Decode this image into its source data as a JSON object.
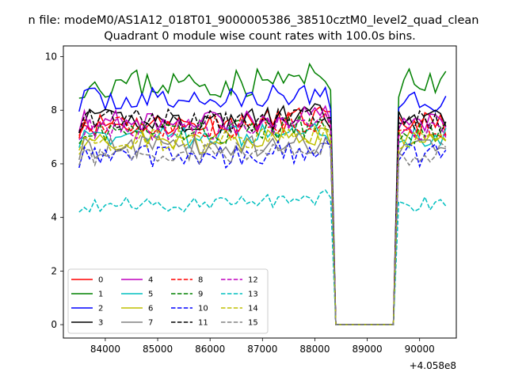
{
  "figure": {
    "suptitle": "n file: modeM0/AS1A12_018T01_9000005386_38510cztM0_level2_quad_clean",
    "title": "Quadrant 0 module wise count rates with 100.0s bins.",
    "x_offset_label": "+4.058e8"
  },
  "chart_data": {
    "type": "line",
    "title": "Quadrant 0 module wise count rates with 100.0s bins.",
    "xlabel": "",
    "ylabel": "",
    "x_offset": "+4.058e8",
    "xlim": [
      83200,
      90700
    ],
    "ylim": [
      -0.5,
      10.4
    ],
    "xticks": [
      84000,
      85000,
      86000,
      87000,
      88000,
      89000,
      90000
    ],
    "yticks": [
      0,
      2,
      4,
      6,
      8,
      10
    ],
    "grid": false,
    "legend": {
      "placement": "lower-left",
      "columns": 4
    },
    "series": [
      {
        "name": "0",
        "color": "#ff0000",
        "style": "solid",
        "start": 83500,
        "step": 100,
        "n": 71,
        "base": 7.5,
        "amp": 0.45,
        "seed": 11
      },
      {
        "name": "1",
        "color": "#008000",
        "style": "solid",
        "start": 83500,
        "step": 100,
        "n": 71,
        "base": 9.0,
        "amp": 0.55,
        "seed": 23
      },
      {
        "name": "2",
        "color": "#0000ff",
        "style": "solid",
        "start": 83500,
        "step": 100,
        "n": 71,
        "base": 8.4,
        "amp": 0.45,
        "seed": 37
      },
      {
        "name": "3",
        "color": "#000000",
        "style": "solid",
        "start": 83500,
        "step": 100,
        "n": 71,
        "base": 7.6,
        "amp": 0.45,
        "seed": 41
      },
      {
        "name": "4",
        "color": "#bf00bf",
        "style": "solid",
        "start": 83500,
        "step": 100,
        "n": 71,
        "base": 7.6,
        "amp": 0.4,
        "seed": 53
      },
      {
        "name": "5",
        "color": "#00bfbf",
        "style": "solid",
        "start": 83500,
        "step": 100,
        "n": 71,
        "base": 7.0,
        "amp": 0.4,
        "seed": 67
      },
      {
        "name": "6",
        "color": "#bfbf00",
        "style": "solid",
        "start": 83500,
        "step": 100,
        "n": 71,
        "base": 6.8,
        "amp": 0.45,
        "seed": 71
      },
      {
        "name": "7",
        "color": "#808080",
        "style": "solid",
        "start": 83500,
        "step": 100,
        "n": 71,
        "base": 6.6,
        "amp": 0.45,
        "seed": 83
      },
      {
        "name": "8",
        "color": "#ff0000",
        "style": "dashed",
        "start": 83500,
        "step": 100,
        "n": 71,
        "base": 7.4,
        "amp": 0.45,
        "seed": 97
      },
      {
        "name": "9",
        "color": "#008000",
        "style": "dashed",
        "start": 83500,
        "step": 100,
        "n": 71,
        "base": 7.2,
        "amp": 0.45,
        "seed": 101
      },
      {
        "name": "10",
        "color": "#0000ff",
        "style": "dashed",
        "start": 83500,
        "step": 100,
        "n": 71,
        "base": 6.3,
        "amp": 0.45,
        "seed": 113
      },
      {
        "name": "11",
        "color": "#000000",
        "style": "dashed",
        "start": 83500,
        "step": 100,
        "n": 71,
        "base": 7.6,
        "amp": 0.45,
        "seed": 127
      },
      {
        "name": "12",
        "color": "#bf00bf",
        "style": "dashed",
        "start": 83500,
        "step": 100,
        "n": 71,
        "base": 7.3,
        "amp": 0.4,
        "seed": 131
      },
      {
        "name": "13",
        "color": "#00bfbf",
        "style": "dashed",
        "start": 83500,
        "step": 100,
        "n": 71,
        "base": 4.5,
        "amp": 0.3,
        "seed": 139
      },
      {
        "name": "14",
        "color": "#bfbf00",
        "style": "dashed",
        "start": 83500,
        "step": 100,
        "n": 71,
        "base": 6.9,
        "amp": 0.4,
        "seed": 149
      },
      {
        "name": "15",
        "color": "#808080",
        "style": "dashed",
        "start": 83500,
        "step": 100,
        "n": 71,
        "base": 6.4,
        "amp": 0.45,
        "seed": 157
      }
    ]
  }
}
